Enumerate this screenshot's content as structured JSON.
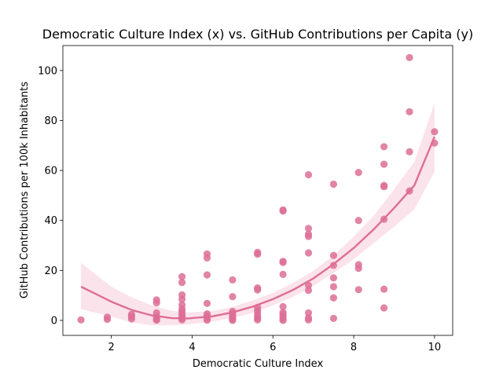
{
  "chart_data": {
    "type": "scatter",
    "title": "Democratic Culture Index (x) vs. GitHub Contributions per Capita (y)",
    "xlabel": "Democratic Culture Index",
    "ylabel": "GitHub Contributions per 100k Inhabitants",
    "xlim": [
      0.8,
      10.45
    ],
    "ylim": [
      -6,
      110
    ],
    "x_ticks": [
      2,
      4,
      6,
      8,
      10
    ],
    "y_ticks": [
      0,
      20,
      40,
      60,
      80,
      100
    ],
    "grid": false,
    "colors": {
      "points": "#dd6e95",
      "line": "#dd6e95",
      "band": "#f9d9e4"
    },
    "points": [
      {
        "x": 1.25,
        "y": 0.2
      },
      {
        "x": 1.9,
        "y": 0.4
      },
      {
        "x": 1.9,
        "y": 1.3
      },
      {
        "x": 2.5,
        "y": 0.6
      },
      {
        "x": 2.5,
        "y": 1.5
      },
      {
        "x": 2.5,
        "y": 2.4
      },
      {
        "x": 3.12,
        "y": 0.1
      },
      {
        "x": 3.12,
        "y": 0.5
      },
      {
        "x": 3.12,
        "y": 1.5
      },
      {
        "x": 3.12,
        "y": 3.0
      },
      {
        "x": 3.12,
        "y": 7.0
      },
      {
        "x": 3.12,
        "y": 8.2
      },
      {
        "x": 3.75,
        "y": 0.2
      },
      {
        "x": 3.75,
        "y": 0.8
      },
      {
        "x": 3.75,
        "y": 1.5
      },
      {
        "x": 3.75,
        "y": 2.5
      },
      {
        "x": 3.75,
        "y": 3.6
      },
      {
        "x": 3.75,
        "y": 4.5
      },
      {
        "x": 3.75,
        "y": 6.2
      },
      {
        "x": 3.75,
        "y": 8.5
      },
      {
        "x": 3.75,
        "y": 10.2
      },
      {
        "x": 3.75,
        "y": 15.2
      },
      {
        "x": 3.75,
        "y": 17.5
      },
      {
        "x": 4.37,
        "y": 0.1
      },
      {
        "x": 4.37,
        "y": 0.8
      },
      {
        "x": 4.37,
        "y": 1.8
      },
      {
        "x": 4.37,
        "y": 2.6
      },
      {
        "x": 4.37,
        "y": 6.8
      },
      {
        "x": 4.37,
        "y": 18.2
      },
      {
        "x": 4.37,
        "y": 25.0
      },
      {
        "x": 4.37,
        "y": 26.6
      },
      {
        "x": 5.0,
        "y": 0.0
      },
      {
        "x": 5.0,
        "y": 0.4
      },
      {
        "x": 5.0,
        "y": 0.9
      },
      {
        "x": 5.0,
        "y": 1.4
      },
      {
        "x": 5.0,
        "y": 2.0
      },
      {
        "x": 5.0,
        "y": 2.8
      },
      {
        "x": 5.0,
        "y": 3.6
      },
      {
        "x": 5.0,
        "y": 9.5
      },
      {
        "x": 5.0,
        "y": 16.2
      },
      {
        "x": 5.62,
        "y": 0.2
      },
      {
        "x": 5.62,
        "y": 0.8
      },
      {
        "x": 5.62,
        "y": 1.5
      },
      {
        "x": 5.62,
        "y": 2.8
      },
      {
        "x": 5.62,
        "y": 4.0
      },
      {
        "x": 5.62,
        "y": 5.2
      },
      {
        "x": 5.62,
        "y": 12.2
      },
      {
        "x": 5.62,
        "y": 13.0
      },
      {
        "x": 5.62,
        "y": 26.5
      },
      {
        "x": 5.62,
        "y": 27.2
      },
      {
        "x": 6.25,
        "y": 0.0
      },
      {
        "x": 6.25,
        "y": 0.5
      },
      {
        "x": 6.25,
        "y": 1.5
      },
      {
        "x": 6.25,
        "y": 2.5
      },
      {
        "x": 6.25,
        "y": 3.2
      },
      {
        "x": 6.25,
        "y": 5.5
      },
      {
        "x": 6.25,
        "y": 18.4
      },
      {
        "x": 6.25,
        "y": 23.2
      },
      {
        "x": 6.25,
        "y": 23.6
      },
      {
        "x": 6.25,
        "y": 43.8
      },
      {
        "x": 6.25,
        "y": 44.2
      },
      {
        "x": 6.88,
        "y": 0.2
      },
      {
        "x": 6.88,
        "y": 1.0
      },
      {
        "x": 6.88,
        "y": 3.0
      },
      {
        "x": 6.88,
        "y": 12.0
      },
      {
        "x": 6.88,
        "y": 14.0
      },
      {
        "x": 6.88,
        "y": 27.0
      },
      {
        "x": 6.88,
        "y": 33.6
      },
      {
        "x": 6.88,
        "y": 34.5
      },
      {
        "x": 6.88,
        "y": 36.8
      },
      {
        "x": 6.88,
        "y": 58.3
      },
      {
        "x": 7.5,
        "y": 0.8
      },
      {
        "x": 7.5,
        "y": 9.0
      },
      {
        "x": 7.5,
        "y": 13.5
      },
      {
        "x": 7.5,
        "y": 17.0
      },
      {
        "x": 7.5,
        "y": 22.0
      },
      {
        "x": 7.5,
        "y": 26.0
      },
      {
        "x": 7.5,
        "y": 54.5
      },
      {
        "x": 8.12,
        "y": 12.3
      },
      {
        "x": 8.12,
        "y": 20.8
      },
      {
        "x": 8.12,
        "y": 22.3
      },
      {
        "x": 8.12,
        "y": 40.0
      },
      {
        "x": 8.12,
        "y": 59.2
      },
      {
        "x": 8.75,
        "y": 5.0
      },
      {
        "x": 8.75,
        "y": 12.5
      },
      {
        "x": 8.75,
        "y": 40.5
      },
      {
        "x": 8.75,
        "y": 53.5
      },
      {
        "x": 8.75,
        "y": 54.0
      },
      {
        "x": 8.75,
        "y": 62.5
      },
      {
        "x": 8.75,
        "y": 69.5
      },
      {
        "x": 9.38,
        "y": 51.8
      },
      {
        "x": 9.38,
        "y": 67.5
      },
      {
        "x": 9.38,
        "y": 83.5
      },
      {
        "x": 9.38,
        "y": 105.2
      },
      {
        "x": 10.0,
        "y": 71.0
      },
      {
        "x": 10.0,
        "y": 75.5
      }
    ],
    "fit": {
      "type": "quadratic regression",
      "x": [
        1.25,
        2.0,
        2.5,
        3.0,
        3.5,
        3.9,
        4.5,
        5.0,
        5.5,
        6.0,
        6.5,
        7.0,
        7.5,
        8.0,
        8.5,
        9.0,
        9.5,
        10.0
      ],
      "y": [
        13.5,
        7.5,
        4.2,
        2.0,
        0.9,
        0.8,
        1.6,
        3.2,
        5.5,
        8.5,
        12.2,
        16.8,
        22.5,
        29.0,
        36.5,
        45.0,
        54.0,
        73.5
      ],
      "lower": [
        4.5,
        1.5,
        -0.8,
        -2.0,
        -2.0,
        -1.6,
        -0.5,
        1.0,
        3.0,
        6.0,
        9.5,
        13.8,
        19.0,
        24.5,
        31.0,
        37.5,
        44.5,
        59.5
      ],
      "upper": [
        23.0,
        13.5,
        9.2,
        6.0,
        3.8,
        3.2,
        3.7,
        5.4,
        8.0,
        11.0,
        15.0,
        19.8,
        26.0,
        33.5,
        42.0,
        52.5,
        63.5,
        87.0
      ]
    }
  }
}
